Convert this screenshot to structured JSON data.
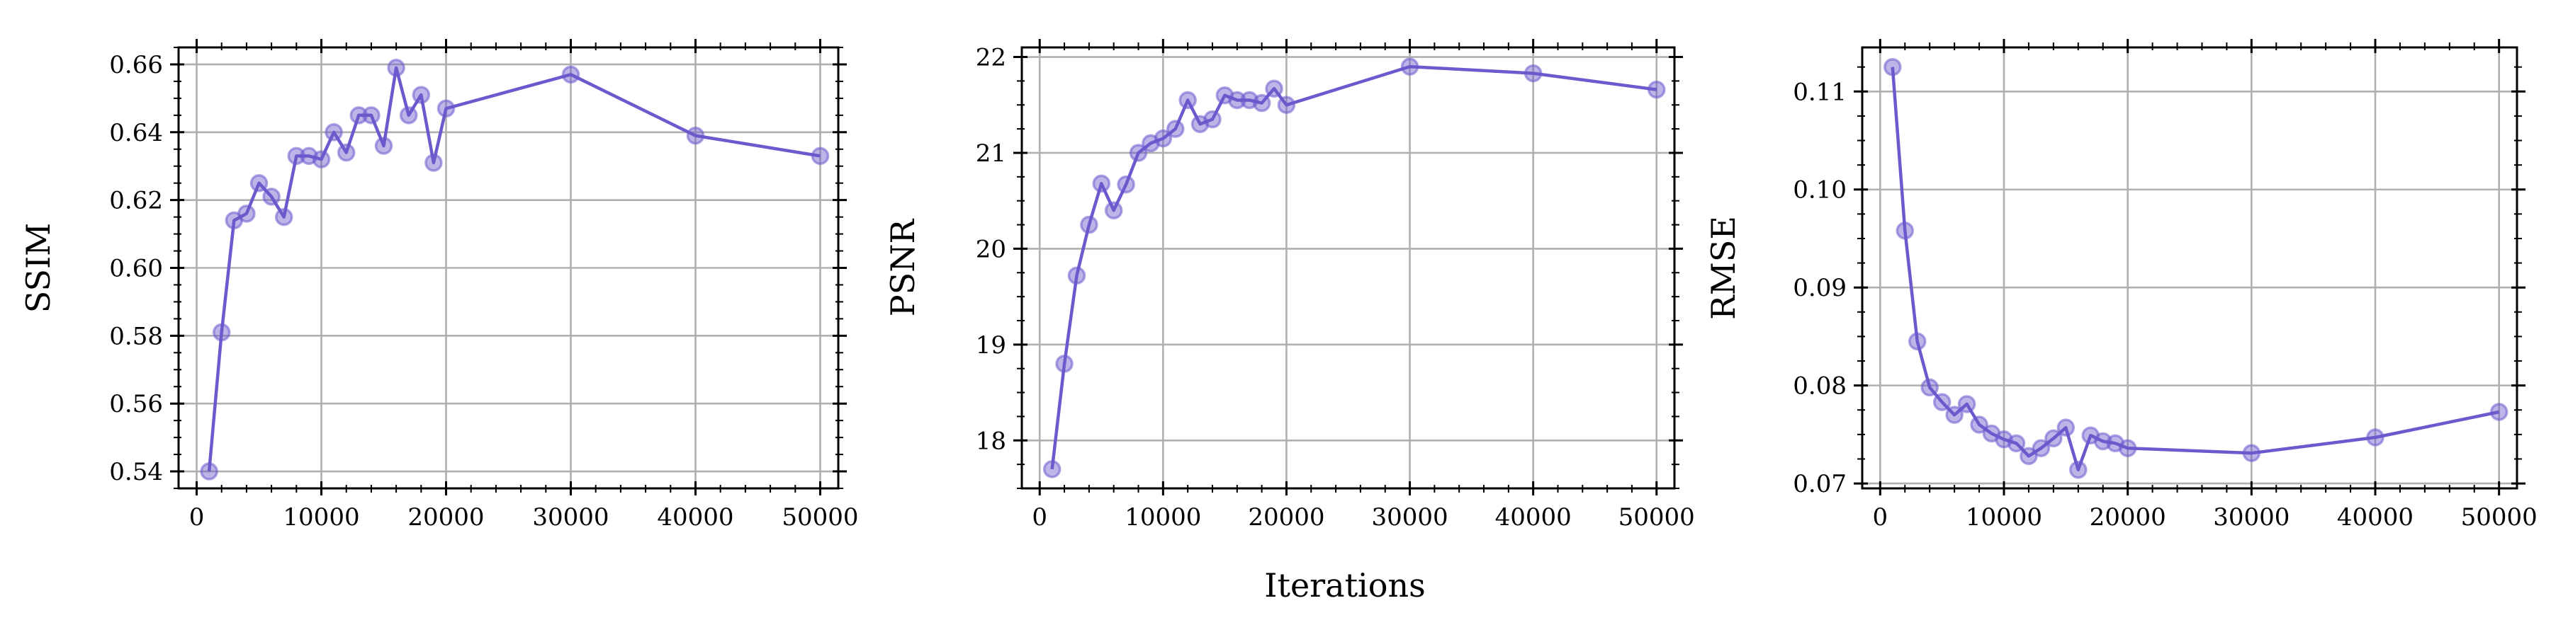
{
  "figure": {
    "shared_xlabel": "Iterations",
    "series_color": "#6a5acd"
  },
  "chart_data": [
    {
      "type": "line",
      "xlabel": "",
      "ylabel": "SSIM",
      "xlim": [
        -1450,
        51450
      ],
      "ylim": [
        0.535,
        0.665
      ],
      "xticks": [
        0,
        10000,
        20000,
        30000,
        40000,
        50000
      ],
      "xtick_labels": [
        "0",
        "10000",
        "20000",
        "30000",
        "40000",
        "50000"
      ],
      "yticks": [
        0.54,
        0.56,
        0.58,
        0.6,
        0.62,
        0.64,
        0.66
      ],
      "ytick_labels": [
        "0.54",
        "0.56",
        "0.58",
        "0.60",
        "0.62",
        "0.64",
        "0.66"
      ],
      "grid": true,
      "series": [
        {
          "x": [
            1000,
            2000,
            3000,
            4000,
            5000,
            6000,
            7000,
            8000,
            9000,
            10000,
            11000,
            12000,
            13000,
            14000,
            15000,
            16000,
            17000,
            18000,
            19000,
            20000,
            30000,
            40000,
            50000
          ],
          "y": [
            0.54,
            0.581,
            0.614,
            0.616,
            0.625,
            0.621,
            0.615,
            0.633,
            0.633,
            0.632,
            0.64,
            0.634,
            0.645,
            0.645,
            0.636,
            0.659,
            0.645,
            0.651,
            0.631,
            0.647,
            0.657,
            0.639,
            0.633
          ]
        }
      ]
    },
    {
      "type": "line",
      "xlabel": "",
      "ylabel": "PSNR",
      "xlim": [
        -1450,
        51450
      ],
      "ylim": [
        17.5,
        22.1
      ],
      "xticks": [
        0,
        10000,
        20000,
        30000,
        40000,
        50000
      ],
      "xtick_labels": [
        "0",
        "10000",
        "20000",
        "30000",
        "40000",
        "50000"
      ],
      "yticks": [
        18,
        19,
        20,
        21,
        22
      ],
      "ytick_labels": [
        "18",
        "19",
        "20",
        "21",
        "22"
      ],
      "grid": true,
      "series": [
        {
          "x": [
            1000,
            2000,
            3000,
            4000,
            5000,
            6000,
            7000,
            8000,
            9000,
            10000,
            11000,
            12000,
            13000,
            14000,
            15000,
            16000,
            17000,
            18000,
            19000,
            20000,
            30000,
            40000,
            50000
          ],
          "y": [
            17.7,
            18.8,
            19.72,
            20.25,
            20.68,
            20.4,
            20.67,
            21.0,
            21.1,
            21.15,
            21.25,
            21.55,
            21.3,
            21.35,
            21.6,
            21.55,
            21.55,
            21.52,
            21.67,
            21.5,
            21.9,
            21.83,
            21.66
          ]
        }
      ]
    },
    {
      "type": "line",
      "xlabel": "",
      "ylabel": "RMSE",
      "xlim": [
        -1450,
        51450
      ],
      "ylim": [
        0.0695,
        0.1145
      ],
      "xticks": [
        0,
        10000,
        20000,
        30000,
        40000,
        50000
      ],
      "xtick_labels": [
        "0",
        "10000",
        "20000",
        "30000",
        "40000",
        "50000"
      ],
      "yticks": [
        0.07,
        0.08,
        0.09,
        0.1,
        0.11
      ],
      "ytick_labels": [
        "0.07",
        "0.08",
        "0.09",
        "0.10",
        "0.11"
      ],
      "grid": true,
      "series": [
        {
          "x": [
            1000,
            2000,
            3000,
            4000,
            5000,
            6000,
            7000,
            8000,
            9000,
            10000,
            11000,
            12000,
            13000,
            14000,
            15000,
            16000,
            17000,
            18000,
            19000,
            20000,
            30000,
            40000,
            50000
          ],
          "y": [
            0.1125,
            0.0958,
            0.0845,
            0.0798,
            0.0783,
            0.077,
            0.0781,
            0.076,
            0.0751,
            0.0745,
            0.0741,
            0.0728,
            0.0736,
            0.0746,
            0.0757,
            0.0714,
            0.0749,
            0.0743,
            0.0741,
            0.0736,
            0.0731,
            0.0747,
            0.0773
          ]
        }
      ]
    }
  ]
}
